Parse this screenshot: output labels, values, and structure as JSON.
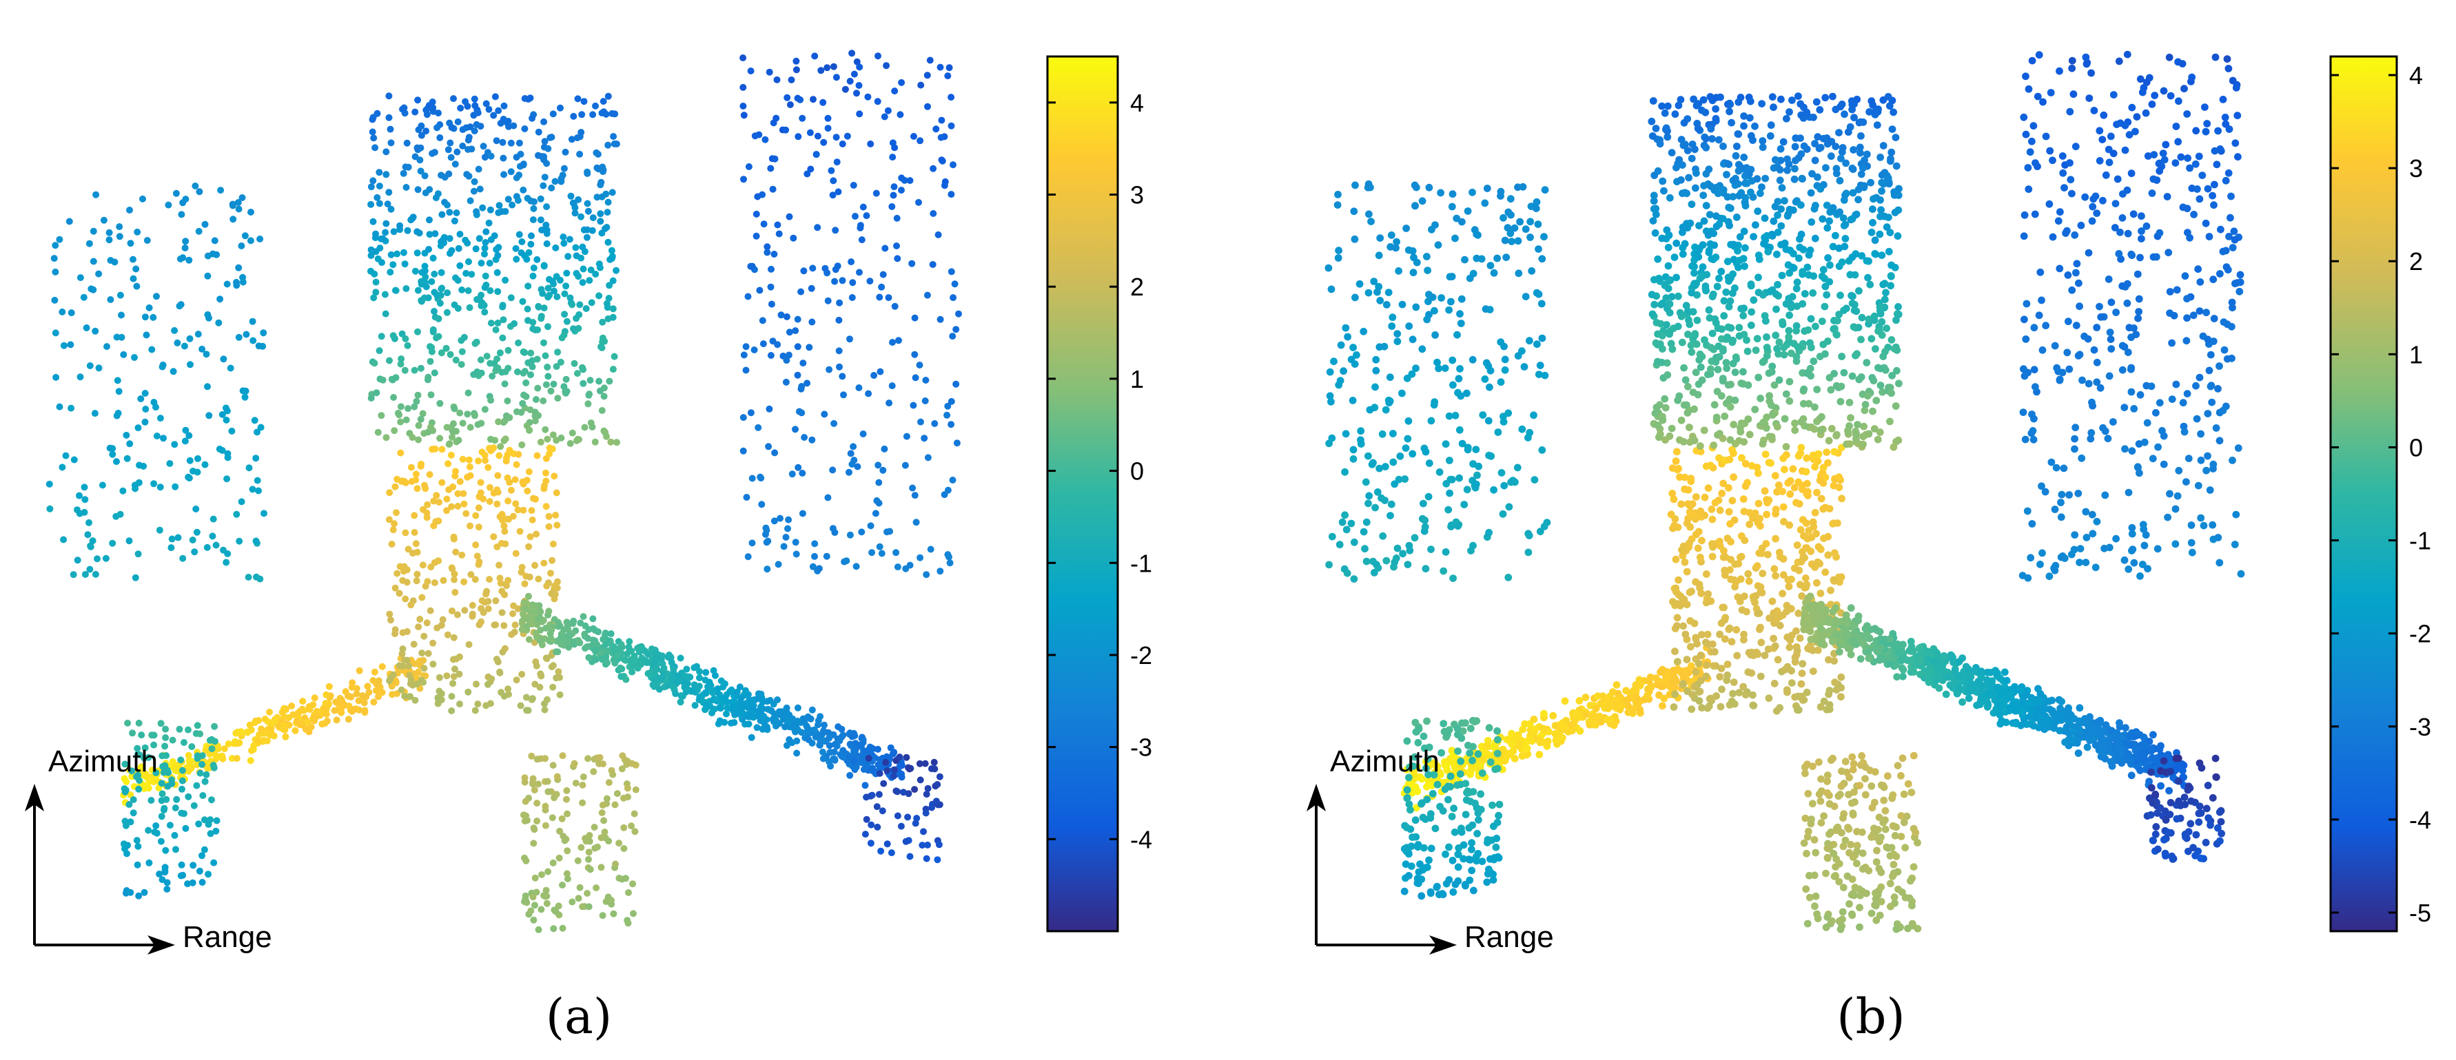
{
  "chart_data": [
    {
      "type": "scatter",
      "panel_label": "(a)",
      "axes_arrows": {
        "vertical_label": "Azimuth",
        "horizontal_label": "Range"
      },
      "colormap": "parula",
      "colorbar": {
        "min": -5.0,
        "max": 4.5,
        "ticks": [
          4,
          3,
          2,
          1,
          0,
          -1,
          -2,
          -3,
          -4
        ]
      },
      "point_count_estimate": 4000,
      "clusters": [
        {
          "name": "left-arm",
          "x": [
            0.1,
            0.42
          ],
          "y": [
            0.7,
            0.84
          ],
          "value": [
            4.2,
            3.0
          ]
        },
        {
          "name": "junction",
          "x": [
            0.38,
            0.56
          ],
          "y": [
            0.45,
            0.75
          ],
          "value": [
            3.5,
            1.5
          ]
        },
        {
          "name": "upper-trunk",
          "x": [
            0.36,
            0.62
          ],
          "y": [
            0.05,
            0.45
          ],
          "value": [
            -3.5,
            1.0
          ]
        },
        {
          "name": "right-arm",
          "x": [
            0.52,
            0.92
          ],
          "y": [
            0.62,
            0.86
          ],
          "value": [
            1.0,
            -3.5
          ]
        },
        {
          "name": "far-right-blob",
          "x": [
            0.88,
            0.96
          ],
          "y": [
            0.8,
            0.92
          ],
          "value": [
            -4.6,
            -4.0
          ]
        },
        {
          "name": "lower-stem",
          "x": [
            0.52,
            0.64
          ],
          "y": [
            0.8,
            1.0
          ],
          "value": [
            1.8,
            1.0
          ]
        },
        {
          "name": "left-hook",
          "x": [
            0.1,
            0.2
          ],
          "y": [
            0.76,
            0.96
          ],
          "value": [
            0.0,
            -1.8
          ]
        },
        {
          "name": "upper-left-sparse",
          "x": [
            0.02,
            0.25
          ],
          "y": [
            0.15,
            0.6
          ],
          "value": [
            -2.2,
            -1.0
          ]
        },
        {
          "name": "upper-right-sparse",
          "x": [
            0.75,
            0.98
          ],
          "y": [
            0.0,
            0.6
          ],
          "value": [
            -4.0,
            -2.5
          ]
        }
      ]
    },
    {
      "type": "scatter",
      "panel_label": "(b)",
      "axes_arrows": {
        "vertical_label": "Azimuth",
        "horizontal_label": "Range"
      },
      "colormap": "parula",
      "colorbar": {
        "min": -5.2,
        "max": 4.2,
        "ticks": [
          4,
          3,
          2,
          1,
          0,
          -1,
          -2,
          -3,
          -4,
          -5
        ]
      },
      "point_count_estimate": 5500,
      "clusters": [
        {
          "name": "left-arm",
          "x": [
            0.1,
            0.42
          ],
          "y": [
            0.7,
            0.84
          ],
          "value": [
            4.0,
            3.0
          ]
        },
        {
          "name": "junction",
          "x": [
            0.38,
            0.56
          ],
          "y": [
            0.45,
            0.75
          ],
          "value": [
            3.3,
            1.5
          ]
        },
        {
          "name": "upper-trunk",
          "x": [
            0.36,
            0.62
          ],
          "y": [
            0.05,
            0.45
          ],
          "value": [
            -3.8,
            1.0
          ]
        },
        {
          "name": "right-arm",
          "x": [
            0.52,
            0.92
          ],
          "y": [
            0.62,
            0.86
          ],
          "value": [
            1.0,
            -3.8
          ]
        },
        {
          "name": "far-right-blob",
          "x": [
            0.88,
            0.96
          ],
          "y": [
            0.8,
            0.92
          ],
          "value": [
            -5.0,
            -4.2
          ]
        },
        {
          "name": "lower-stem",
          "x": [
            0.52,
            0.64
          ],
          "y": [
            0.8,
            1.0
          ],
          "value": [
            1.8,
            1.0
          ]
        },
        {
          "name": "left-hook",
          "x": [
            0.1,
            0.2
          ],
          "y": [
            0.76,
            0.96
          ],
          "value": [
            0.0,
            -2.0
          ]
        },
        {
          "name": "upper-left-sparse",
          "x": [
            0.02,
            0.25
          ],
          "y": [
            0.15,
            0.6
          ],
          "value": [
            -2.5,
            -1.0
          ]
        },
        {
          "name": "upper-right-sparse",
          "x": [
            0.75,
            0.98
          ],
          "y": [
            0.0,
            0.6
          ],
          "value": [
            -4.2,
            -2.5
          ]
        }
      ]
    }
  ]
}
